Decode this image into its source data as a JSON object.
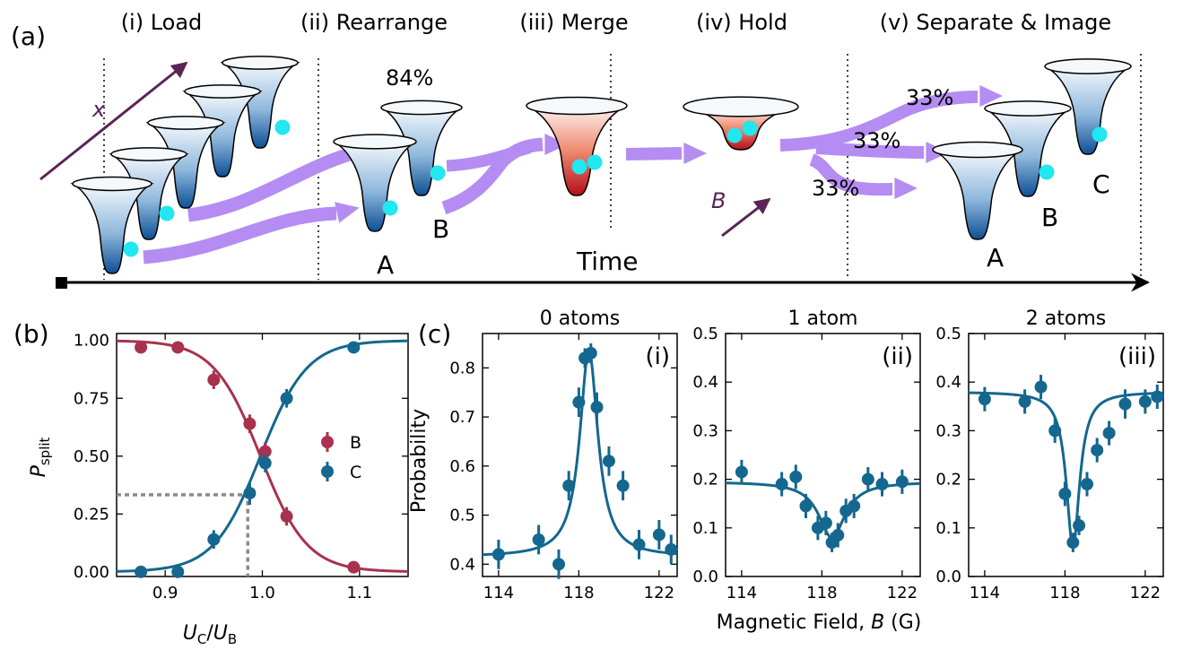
{
  "panel_a": {
    "label": "(a)",
    "steps": [
      "(i) Load",
      "(ii) Rearrange",
      "(iii) Merge",
      "(iv) Hold",
      "(v) Separate & Image"
    ],
    "x_arrow_label": "x",
    "b_arrow_label": "B",
    "rearrange_pct": "84%",
    "split_pcts": [
      "33%",
      "33%",
      "33%"
    ],
    "well_labels": {
      "a1": "A",
      "b1": "B",
      "a2": "A",
      "b2": "B",
      "c2": "C"
    },
    "time_label": "Time",
    "colors": {
      "well_blue": "#1f6fb3",
      "well_red": "#c0141c",
      "atom": "#22e6f0",
      "flow": "#b48cf2",
      "arrow_purple": "#5a2456"
    }
  },
  "panel_b": {
    "label": "(b)",
    "xlabel_main": "U",
    "xlabel_sub1": "C",
    "xlabel_div": "/",
    "xlabel_sub2": "B",
    "ylabel_main": "P",
    "ylabel_sub": "split"
  },
  "panel_c": {
    "label": "(c)",
    "ylabel": "Probability",
    "xlabel": "Magnetic Field, ",
    "xlabel_var": "B",
    "xlabel_unit": " (G)"
  },
  "colors": {
    "B": "#a8324e",
    "C": "#14678e",
    "dotted": "#8a8a8a"
  },
  "chart_data": [
    {
      "type": "scatter",
      "id": "b",
      "xlim": [
        0.85,
        1.15
      ],
      "ylim": [
        -0.02,
        1.03
      ],
      "xticks": [
        0.9,
        1.0,
        1.1
      ],
      "xtick_labels": [
        "0.9",
        "1.0",
        "1.1"
      ],
      "yticks": [
        0,
        0.25,
        0.5,
        0.75,
        1.0
      ],
      "ytick_labels": [
        "0.00",
        "0.25",
        "0.50",
        "0.75",
        "1.00"
      ],
      "legend": "right",
      "series": [
        {
          "name": "B",
          "x": [
            0.875,
            0.913,
            0.95,
            0.987,
            1.003,
            1.025,
            1.094
          ],
          "y": [
            0.97,
            0.97,
            0.83,
            0.64,
            0.52,
            0.24,
            0.02
          ],
          "err": [
            0.02,
            0.02,
            0.04,
            0.04,
            0.04,
            0.04,
            0.02
          ]
        },
        {
          "name": "C",
          "x": [
            0.875,
            0.913,
            0.95,
            0.987,
            1.003,
            1.025,
            1.094
          ],
          "y": [
            0.0,
            0.0,
            0.14,
            0.34,
            0.47,
            0.75,
            0.97
          ],
          "err": [
            0.02,
            0.02,
            0.04,
            0.05,
            0.04,
            0.04,
            0.02
          ]
        }
      ],
      "reference_point": {
        "x": 0.985,
        "y": 0.333
      }
    },
    {
      "type": "scatter",
      "id": "c-i",
      "title": "0 atoms",
      "tag": "(i)",
      "xlim": [
        113.2,
        122.9
      ],
      "ylim": [
        0.375,
        0.87
      ],
      "xticks": [
        114,
        118,
        122
      ],
      "xtick_labels": [
        "114",
        "118",
        "122"
      ],
      "yticks": [
        0.4,
        0.5,
        0.6,
        0.7,
        0.8
      ],
      "ytick_labels": [
        "0.4",
        "0.5",
        "0.6",
        "0.7",
        "0.8"
      ],
      "x": [
        114.0,
        116.0,
        117.0,
        117.5,
        118.0,
        118.3,
        118.6,
        118.9,
        119.5,
        120.2,
        121.0,
        122.0,
        122.6
      ],
      "y": [
        0.42,
        0.45,
        0.4,
        0.56,
        0.73,
        0.82,
        0.83,
        0.72,
        0.61,
        0.56,
        0.44,
        0.46,
        0.43
      ],
      "err": [
        0.03,
        0.03,
        0.03,
        0.03,
        0.03,
        0.02,
        0.02,
        0.03,
        0.03,
        0.03,
        0.03,
        0.03,
        0.03
      ],
      "fit": {
        "kind": "peak",
        "center": 118.5,
        "width": 0.55,
        "base": 0.415,
        "amp": 0.42
      }
    },
    {
      "type": "scatter",
      "id": "c-ii",
      "title": "1 atom",
      "tag": "(ii)",
      "xlim": [
        113.2,
        122.9
      ],
      "ylim": [
        0.0,
        0.5
      ],
      "xticks": [
        114,
        118,
        122
      ],
      "xtick_labels": [
        "114",
        "118",
        "122"
      ],
      "yticks": [
        0.0,
        0.1,
        0.2,
        0.3,
        0.4,
        0.5
      ],
      "ytick_labels": [
        "0.0",
        "0.1",
        "0.2",
        "0.3",
        "0.4",
        "0.5"
      ],
      "x": [
        114.0,
        116.0,
        116.7,
        117.2,
        117.8,
        118.2,
        118.5,
        118.8,
        119.2,
        119.6,
        120.3,
        121.0,
        122.0
      ],
      "y": [
        0.215,
        0.19,
        0.205,
        0.145,
        0.1,
        0.11,
        0.07,
        0.085,
        0.135,
        0.145,
        0.2,
        0.19,
        0.195
      ],
      "err": [
        0.025,
        0.025,
        0.025,
        0.025,
        0.025,
        0.025,
        0.02,
        0.025,
        0.025,
        0.025,
        0.025,
        0.025,
        0.025
      ],
      "fit": {
        "kind": "dip",
        "center": 118.5,
        "width": 0.8,
        "base": 0.195,
        "amp": 0.115
      }
    },
    {
      "type": "scatter",
      "id": "c-iii",
      "title": "2 atoms",
      "tag": "(iii)",
      "xlim": [
        113.2,
        122.9
      ],
      "ylim": [
        0.0,
        0.5
      ],
      "xticks": [
        114,
        118,
        122
      ],
      "xtick_labels": [
        "114",
        "118",
        "122"
      ],
      "yticks": [
        0.0,
        0.1,
        0.2,
        0.3,
        0.4,
        0.5
      ],
      "ytick_labels": [
        "0.0",
        "0.1",
        "0.2",
        "0.3",
        "0.4",
        "0.5"
      ],
      "x": [
        114.0,
        116.0,
        116.8,
        117.5,
        118.0,
        118.4,
        118.7,
        119.1,
        119.6,
        120.2,
        121.0,
        122.0,
        122.6
      ],
      "y": [
        0.365,
        0.36,
        0.39,
        0.3,
        0.17,
        0.07,
        0.105,
        0.19,
        0.26,
        0.295,
        0.355,
        0.36,
        0.37
      ],
      "err": [
        0.025,
        0.025,
        0.025,
        0.025,
        0.025,
        0.02,
        0.02,
        0.025,
        0.025,
        0.025,
        0.03,
        0.025,
        0.025
      ],
      "fit": {
        "kind": "dip",
        "center": 118.4,
        "width": 0.4,
        "base": 0.38,
        "amp": 0.32
      }
    }
  ]
}
